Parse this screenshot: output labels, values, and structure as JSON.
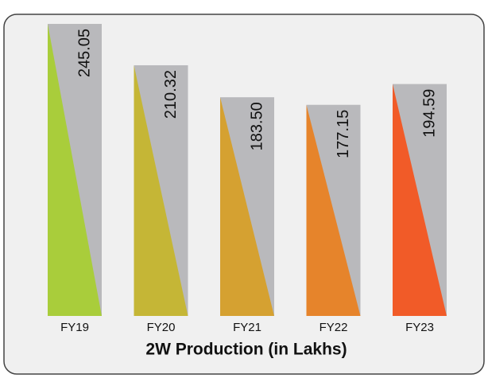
{
  "chart_data": {
    "type": "bar",
    "title": "2W Production (in Lakhs)",
    "categories": [
      "FY19",
      "FY20",
      "FY21",
      "FY22",
      "FY23"
    ],
    "values": [
      245.05,
      210.32,
      183.5,
      177.15,
      194.59
    ],
    "value_labels": [
      "245.05",
      "210.32",
      "183.50",
      "177.15",
      "194.59"
    ],
    "colors": [
      "#a9cd3b",
      "#c5b636",
      "#d5a131",
      "#e6842b",
      "#f15b28"
    ],
    "back_color": "#b9b9bc",
    "ylim": [
      0,
      250
    ]
  }
}
